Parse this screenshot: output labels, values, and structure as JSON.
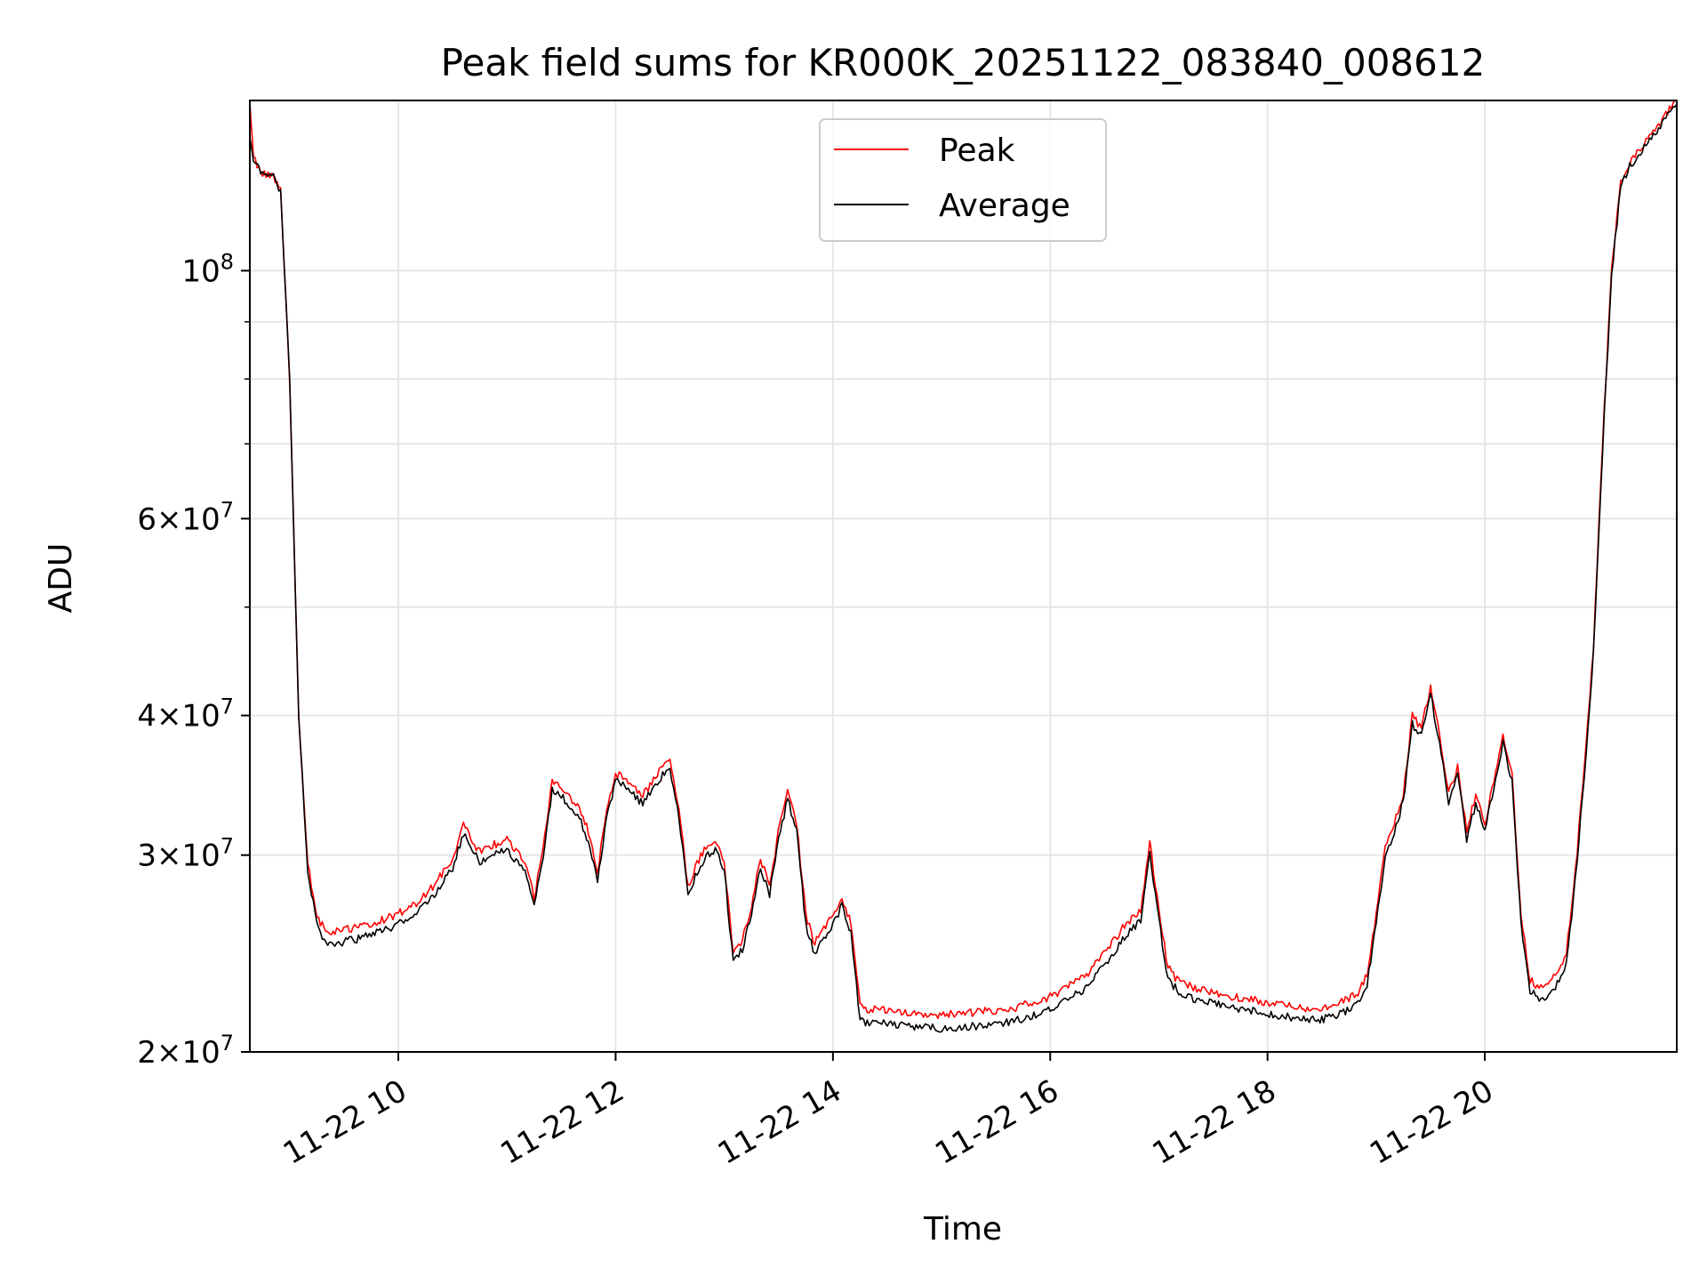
{
  "chart_data": {
    "type": "line",
    "title": "Peak field sums for KR000K_20251122_083840_008612",
    "xlabel": "Time",
    "ylabel": "ADU",
    "yscale": "log",
    "ylim": [
      20000000,
      142000000
    ],
    "xlim": [
      "2025-11-22 08:38",
      "2025-11-22 21:46"
    ],
    "grid": true,
    "legend_position": "upper center",
    "x_ticks": [
      {
        "t": "2025-11-22 10:00",
        "label": "11-22 10"
      },
      {
        "t": "2025-11-22 12:00",
        "label": "11-22 12"
      },
      {
        "t": "2025-11-22 14:00",
        "label": "11-22 14"
      },
      {
        "t": "2025-11-22 16:00",
        "label": "11-22 16"
      },
      {
        "t": "2025-11-22 18:00",
        "label": "11-22 18"
      },
      {
        "t": "2025-11-22 20:00",
        "label": "11-22 20"
      }
    ],
    "y_major_ticks": [
      {
        "value": 20000000,
        "mant": "2",
        "exp": "7"
      },
      {
        "value": 30000000,
        "mant": "3",
        "exp": "7"
      },
      {
        "value": 40000000,
        "mant": "4",
        "exp": "7"
      },
      {
        "value": 60000000,
        "mant": "6",
        "exp": "7"
      },
      {
        "value": 100000000,
        "mant": "",
        "exp": "8"
      }
    ],
    "y_minor_gridlines": [
      50000000,
      70000000,
      80000000,
      90000000
    ],
    "series": [
      {
        "name": "Peak",
        "color": "#ff0000",
        "x": [
          "2025-11-22 08:38",
          "2025-11-22 08:40",
          "2025-11-22 08:45",
          "2025-11-22 08:50",
          "2025-11-22 08:55",
          "2025-11-22 09:00",
          "2025-11-22 09:05",
          "2025-11-22 09:10",
          "2025-11-22 09:15",
          "2025-11-22 09:20",
          "2025-11-22 09:25",
          "2025-11-22 09:30",
          "2025-11-22 09:35",
          "2025-11-22 09:40",
          "2025-11-22 09:50",
          "2025-11-22 10:00",
          "2025-11-22 10:10",
          "2025-11-22 10:20",
          "2025-11-22 10:30",
          "2025-11-22 10:36",
          "2025-11-22 10:40",
          "2025-11-22 10:45",
          "2025-11-22 10:50",
          "2025-11-22 11:00",
          "2025-11-22 11:10",
          "2025-11-22 11:15",
          "2025-11-22 11:20",
          "2025-11-22 11:25",
          "2025-11-22 11:30",
          "2025-11-22 11:35",
          "2025-11-22 11:40",
          "2025-11-22 11:45",
          "2025-11-22 11:50",
          "2025-11-22 11:55",
          "2025-11-22 12:00",
          "2025-11-22 12:05",
          "2025-11-22 12:10",
          "2025-11-22 12:15",
          "2025-11-22 12:20",
          "2025-11-22 12:25",
          "2025-11-22 12:30",
          "2025-11-22 12:35",
          "2025-11-22 12:40",
          "2025-11-22 12:45",
          "2025-11-22 12:50",
          "2025-11-22 12:55",
          "2025-11-22 13:00",
          "2025-11-22 13:05",
          "2025-11-22 13:10",
          "2025-11-22 13:15",
          "2025-11-22 13:20",
          "2025-11-22 13:25",
          "2025-11-22 13:30",
          "2025-11-22 13:35",
          "2025-11-22 13:40",
          "2025-11-22 13:45",
          "2025-11-22 13:50",
          "2025-11-22 13:55",
          "2025-11-22 14:00",
          "2025-11-22 14:05",
          "2025-11-22 14:10",
          "2025-11-22 14:15",
          "2025-11-22 14:20",
          "2025-11-22 14:25",
          "2025-11-22 14:30",
          "2025-11-22 14:40",
          "2025-11-22 15:00",
          "2025-11-22 15:20",
          "2025-11-22 15:40",
          "2025-11-22 16:00",
          "2025-11-22 16:10",
          "2025-11-22 16:20",
          "2025-11-22 16:30",
          "2025-11-22 16:40",
          "2025-11-22 16:50",
          "2025-11-22 16:55",
          "2025-11-22 17:00",
          "2025-11-22 17:05",
          "2025-11-22 17:10",
          "2025-11-22 17:20",
          "2025-11-22 17:30",
          "2025-11-22 17:40",
          "2025-11-22 17:50",
          "2025-11-22 18:00",
          "2025-11-22 18:10",
          "2025-11-22 18:20",
          "2025-11-22 18:30",
          "2025-11-22 18:40",
          "2025-11-22 18:50",
          "2025-11-22 18:55",
          "2025-11-22 19:00",
          "2025-11-22 19:05",
          "2025-11-22 19:10",
          "2025-11-22 19:15",
          "2025-11-22 19:20",
          "2025-11-22 19:25",
          "2025-11-22 19:30",
          "2025-11-22 19:35",
          "2025-11-22 19:40",
          "2025-11-22 19:45",
          "2025-11-22 19:50",
          "2025-11-22 19:55",
          "2025-11-22 20:00",
          "2025-11-22 20:05",
          "2025-11-22 20:10",
          "2025-11-22 20:15",
          "2025-11-22 20:20",
          "2025-11-22 20:25",
          "2025-11-22 20:30",
          "2025-11-22 20:35",
          "2025-11-22 20:40",
          "2025-11-22 20:45",
          "2025-11-22 20:50",
          "2025-11-22 20:55",
          "2025-11-22 21:00",
          "2025-11-22 21:05",
          "2025-11-22 21:10",
          "2025-11-22 21:15",
          "2025-11-22 21:20",
          "2025-11-22 21:25",
          "2025-11-22 21:30",
          "2025-11-22 21:35",
          "2025-11-22 21:40",
          "2025-11-22 21:46"
        ],
        "y": [
          142000000,
          126000000,
          122000000,
          122000000,
          118000000,
          80000000,
          40000000,
          29500000,
          26500000,
          25600000,
          25600000,
          25700000,
          25800000,
          25900000,
          26200000,
          26600000,
          27200000,
          28200000,
          29800000,
          32000000,
          31000000,
          30200000,
          30500000,
          31000000,
          29500000,
          27500000,
          30500000,
          35000000,
          34500000,
          33800000,
          33000000,
          31500000,
          29000000,
          33000000,
          35500000,
          35200000,
          34500000,
          34000000,
          34800000,
          35800000,
          36500000,
          33000000,
          28000000,
          29500000,
          30500000,
          30800000,
          29600000,
          24500000,
          25200000,
          27000000,
          29800000,
          28200000,
          31500000,
          34200000,
          32000000,
          26500000,
          25000000,
          25800000,
          26500000,
          27500000,
          26000000,
          22000000,
          21800000,
          21900000,
          21800000,
          21700000,
          21600000,
          21700000,
          21900000,
          22400000,
          22900000,
          23400000,
          24500000,
          25800000,
          26800000,
          30800000,
          26800000,
          23800000,
          23200000,
          22800000,
          22600000,
          22400000,
          22300000,
          22100000,
          22000000,
          21900000,
          21900000,
          22100000,
          22600000,
          23500000,
          26500000,
          30500000,
          32000000,
          34000000,
          40000000,
          39000000,
          42500000,
          38500000,
          34000000,
          36000000,
          31500000,
          34000000,
          32000000,
          35000000,
          38500000,
          35500000,
          26500000,
          23200000,
          22800000,
          23000000,
          23500000,
          24500000,
          29000000,
          36000000,
          46000000,
          70000000,
          100000000,
          120000000,
          125000000,
          128000000,
          131000000,
          134000000,
          138000000,
          142000000
        ]
      },
      {
        "name": "Average",
        "color": "#000000",
        "x": [
          "2025-11-22 08:38",
          "2025-11-22 08:40",
          "2025-11-22 08:45",
          "2025-11-22 08:50",
          "2025-11-22 08:55",
          "2025-11-22 09:00",
          "2025-11-22 09:05",
          "2025-11-22 09:10",
          "2025-11-22 09:15",
          "2025-11-22 09:20",
          "2025-11-22 09:25",
          "2025-11-22 09:30",
          "2025-11-22 09:35",
          "2025-11-22 09:40",
          "2025-11-22 09:50",
          "2025-11-22 10:00",
          "2025-11-22 10:10",
          "2025-11-22 10:20",
          "2025-11-22 10:30",
          "2025-11-22 10:36",
          "2025-11-22 10:40",
          "2025-11-22 10:45",
          "2025-11-22 10:50",
          "2025-11-22 11:00",
          "2025-11-22 11:10",
          "2025-11-22 11:15",
          "2025-11-22 11:20",
          "2025-11-22 11:25",
          "2025-11-22 11:30",
          "2025-11-22 11:35",
          "2025-11-22 11:40",
          "2025-11-22 11:45",
          "2025-11-22 11:50",
          "2025-11-22 11:55",
          "2025-11-22 12:00",
          "2025-11-22 12:05",
          "2025-11-22 12:10",
          "2025-11-22 12:15",
          "2025-11-22 12:20",
          "2025-11-22 12:25",
          "2025-11-22 12:30",
          "2025-11-22 12:35",
          "2025-11-22 12:40",
          "2025-11-22 12:45",
          "2025-11-22 12:50",
          "2025-11-22 12:55",
          "2025-11-22 13:00",
          "2025-11-22 13:05",
          "2025-11-22 13:10",
          "2025-11-22 13:15",
          "2025-11-22 13:20",
          "2025-11-22 13:25",
          "2025-11-22 13:30",
          "2025-11-22 13:35",
          "2025-11-22 13:40",
          "2025-11-22 13:45",
          "2025-11-22 13:50",
          "2025-11-22 13:55",
          "2025-11-22 14:00",
          "2025-11-22 14:05",
          "2025-11-22 14:10",
          "2025-11-22 14:15",
          "2025-11-22 14:20",
          "2025-11-22 14:25",
          "2025-11-22 14:30",
          "2025-11-22 14:40",
          "2025-11-22 15:00",
          "2025-11-22 15:20",
          "2025-11-22 15:40",
          "2025-11-22 16:00",
          "2025-11-22 16:10",
          "2025-11-22 16:20",
          "2025-11-22 16:30",
          "2025-11-22 16:40",
          "2025-11-22 16:50",
          "2025-11-22 16:55",
          "2025-11-22 17:00",
          "2025-11-22 17:05",
          "2025-11-22 17:10",
          "2025-11-22 17:20",
          "2025-11-22 17:30",
          "2025-11-22 17:40",
          "2025-11-22 17:50",
          "2025-11-22 18:00",
          "2025-11-22 18:10",
          "2025-11-22 18:20",
          "2025-11-22 18:30",
          "2025-11-22 18:40",
          "2025-11-22 18:50",
          "2025-11-22 18:55",
          "2025-11-22 19:00",
          "2025-11-22 19:05",
          "2025-11-22 19:10",
          "2025-11-22 19:15",
          "2025-11-22 19:20",
          "2025-11-22 19:25",
          "2025-11-22 19:30",
          "2025-11-22 19:35",
          "2025-11-22 19:40",
          "2025-11-22 19:45",
          "2025-11-22 19:50",
          "2025-11-22 19:55",
          "2025-11-22 20:00",
          "2025-11-22 20:05",
          "2025-11-22 20:10",
          "2025-11-22 20:15",
          "2025-11-22 20:20",
          "2025-11-22 20:25",
          "2025-11-22 20:30",
          "2025-11-22 20:35",
          "2025-11-22 20:40",
          "2025-11-22 20:45",
          "2025-11-22 20:50",
          "2025-11-22 20:55",
          "2025-11-22 21:00",
          "2025-11-22 21:05",
          "2025-11-22 21:10",
          "2025-11-22 21:15",
          "2025-11-22 21:20",
          "2025-11-22 21:25",
          "2025-11-22 21:30",
          "2025-11-22 21:35",
          "2025-11-22 21:40",
          "2025-11-22 21:46"
        ],
        "y": [
          132000000,
          126000000,
          122000000,
          122000000,
          118000000,
          80000000,
          40000000,
          29000000,
          26000000,
          25000000,
          25000000,
          25100000,
          25200000,
          25300000,
          25600000,
          26000000,
          26600000,
          27600000,
          29200000,
          31400000,
          30400000,
          29600000,
          29900000,
          30400000,
          28900000,
          27000000,
          29900000,
          34400000,
          33900000,
          33200000,
          32400000,
          30900000,
          28500000,
          32400000,
          34900000,
          34600000,
          33900000,
          33400000,
          34200000,
          35200000,
          35900000,
          32400000,
          27500000,
          29000000,
          30000000,
          30300000,
          29100000,
          24000000,
          24700000,
          26500000,
          29300000,
          27700000,
          31000000,
          33700000,
          31500000,
          26000000,
          24500000,
          25300000,
          26000000,
          27000000,
          25500000,
          21300000,
          21200000,
          21300000,
          21200000,
          21100000,
          21000000,
          21100000,
          21300000,
          21800000,
          22300000,
          22800000,
          23900000,
          25200000,
          26200000,
          30200000,
          26200000,
          23300000,
          22700000,
          22300000,
          22100000,
          21900000,
          21800000,
          21600000,
          21500000,
          21400000,
          21400000,
          21600000,
          22100000,
          23000000,
          26000000,
          30000000,
          31500000,
          33500000,
          39300000,
          38300000,
          41800000,
          37800000,
          33400000,
          35400000,
          31000000,
          33400000,
          31500000,
          34400000,
          37900000,
          34900000,
          26000000,
          22700000,
          22300000,
          22500000,
          23000000,
          24000000,
          28500000,
          35500000,
          45500000,
          69000000,
          99000000,
          119000000,
          124000000,
          127000000,
          130000000,
          133000000,
          137000000,
          141000000
        ]
      }
    ]
  }
}
